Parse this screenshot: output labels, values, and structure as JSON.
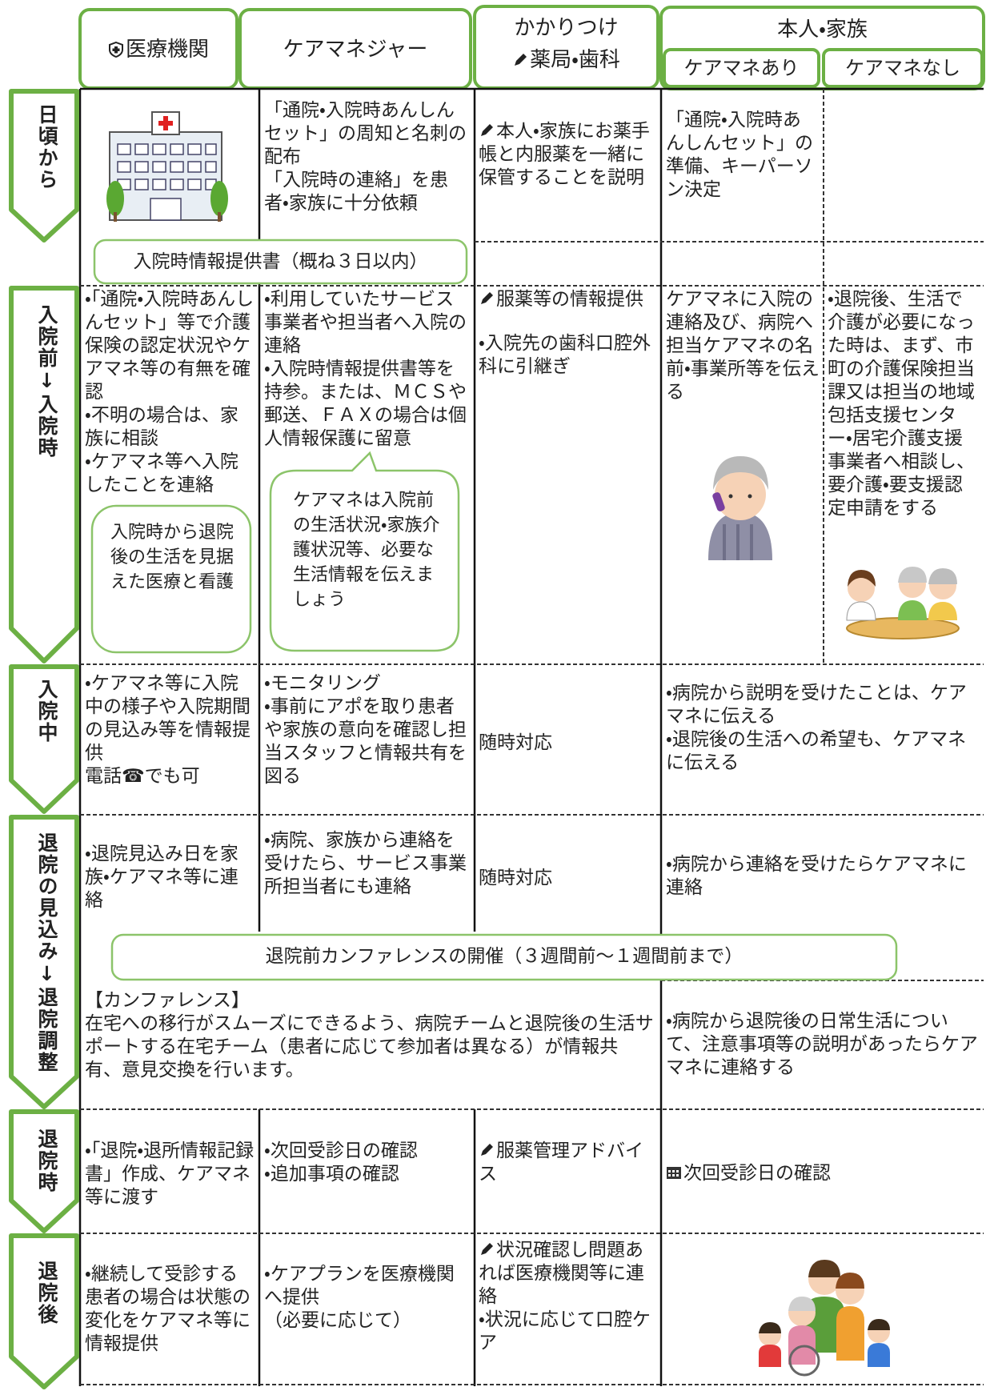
{
  "header": {
    "medical": "医療機関",
    "caremanager": "ケアマネジャー",
    "pharmacy_line1": "かかりつけ",
    "pharmacy_line2": "薬局・歯科",
    "family": "本人・家族",
    "family_with": "ケアマネあり",
    "family_without": "ケアマネなし"
  },
  "stages": [
    {
      "label": "日頃から",
      "caremanager": [
        "「通院・入院時あんしんセット」の周知と名刺の配布",
        "「入院時の連絡」を患者・家族に十分依頼"
      ],
      "pharmacy": [
        "本人・家族にお薬手帳と内服薬を一緒に保管することを説明"
      ],
      "family_with": [
        "「通院・入院時あんしんセット」の準備、キーパーソン決定"
      ],
      "bar": "入院時情報提供書（概ね３日以内）"
    },
    {
      "label": "入院前↓入院時",
      "medical": [
        "・「通院・入院時あんしんセット」等で介護保険の認定状況やケアマネ等の有無を確認",
        "・不明の場合は、家族に相談",
        "・ケアマネ等へ入院したことを連絡"
      ],
      "medical_note": "入院時から退院後の生活を見据えた医療と看護",
      "caremanager": [
        "・利用していたサービス事業者や担当者へ入院の連絡",
        "・入院時情報提供書等を持参。または、ＭＣＳや郵送、ＦＡＸの場合は個人情報保護に留意"
      ],
      "caremanager_note": "ケアマネは入院前の生活状況・家族介護状況等、必要な生活情報を伝えましょう",
      "pharmacy": [
        "服薬等の情報提供",
        "・入院先の歯科口腔外科に引継ぎ"
      ],
      "family_with": [
        "ケアマネに入院の連絡及び、病院へ担当ケアマネの名前・事業所等を伝える"
      ],
      "family_without": [
        "・退院後、生活で介護が必要になった時は、まず、市町の介護保険担当課又は担当の地域包括支援センター・居宅介護支援事業者へ相談し、要介護・要支援認定申請をする"
      ]
    },
    {
      "label": "入院中",
      "medical": [
        "・ケアマネ等に入院中の様子や入院期間の見込み等を情報提供",
        "電話☎でも可"
      ],
      "caremanager": [
        "・モニタリング",
        "・事前にアポを取り患者や家族の意向を確認し担当スタッフと情報共有を図る"
      ],
      "pharmacy": [
        "随時対応"
      ],
      "family": [
        "・病院から説明を受けたことは、ケアマネに伝える",
        "・退院後の生活への希望も、ケアマネに伝える"
      ]
    },
    {
      "label": "退院の見込み↓退院調整",
      "medical": [
        "・退院見込み日を家族・ケアマネ等に連絡"
      ],
      "caremanager": [
        "・病院、家族から連絡を受けたら、サービス事業所担当者にも連絡"
      ],
      "pharmacy": [
        "随時対応"
      ],
      "family": [
        "・病院から連絡を受けたらケアマネに連絡"
      ],
      "bar": "退院前カンファレンスの開催（３週間前～１週間前まで）",
      "conference": [
        "【カンファレンス】",
        "在宅への移行がスムーズにできるよう、病院チームと退院後の生活サポートする在宅チーム（患者に応じて参加者は異なる）が情報共有、意見交換を行います。"
      ],
      "family_after": [
        "・病院から退院後の日常生活について、注意事項等の説明があったらケアマネに連絡する"
      ]
    },
    {
      "label": "退院時",
      "medical": [
        "・「退院・退所情報記録書」作成、ケアマネ等に渡す"
      ],
      "caremanager": [
        "・次回受診日の確認",
        "・追加事項の確認"
      ],
      "pharmacy": [
        "服薬管理アドバイス"
      ],
      "family": [
        "次回受診日の確認"
      ]
    },
    {
      "label": "退院後",
      "medical": [
        "・継続して受診する患者の場合は状態の変化をケアマネ等に情報提供"
      ],
      "caremanager": [
        "・ケアプランを医療機関へ提供",
        "（必要に応じて）"
      ],
      "pharmacy": [
        "状況確認し問題あれば医療機関等に連絡",
        "・状況に応じて口腔ケア"
      ]
    }
  ]
}
